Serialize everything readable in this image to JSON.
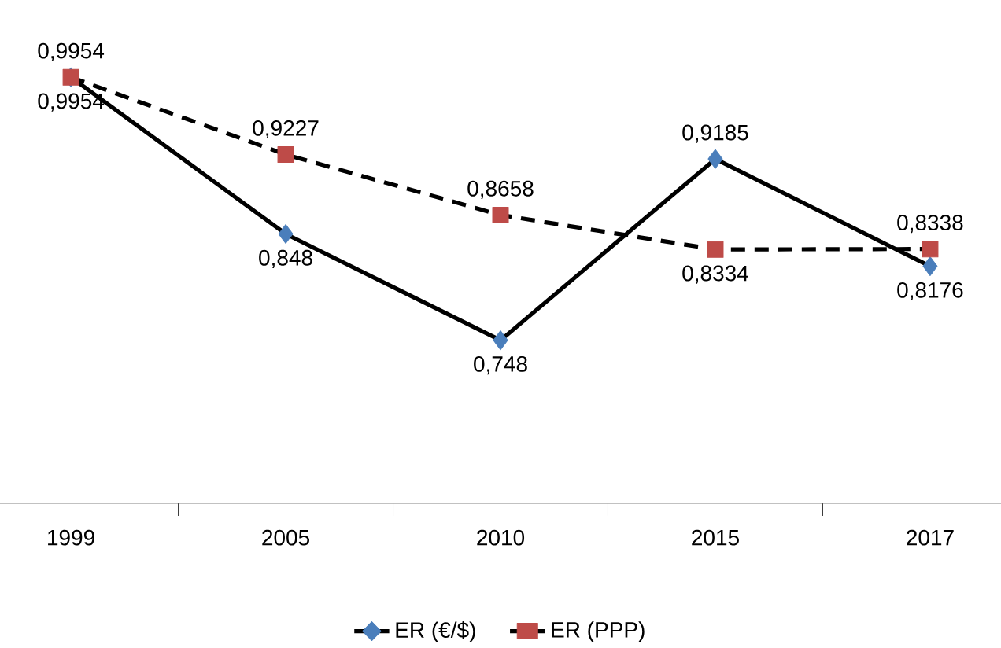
{
  "chart_data": {
    "type": "line",
    "categories": [
      "1999",
      "2005",
      "2010",
      "2015",
      "2017"
    ],
    "series": [
      {
        "name": "ER (€/$)",
        "color": "#4a7ebb",
        "marker": "diamond",
        "line_style": "solid",
        "values": [
          0.9954,
          0.848,
          0.748,
          0.9185,
          0.8176
        ],
        "value_labels": [
          "0,9954",
          "0,848",
          "0,748",
          "0,9185",
          "0,8176"
        ]
      },
      {
        "name": "ER (PPP)",
        "color": "#be4b48",
        "marker": "square",
        "line_style": "dashed",
        "values": [
          0.9954,
          0.9227,
          0.8658,
          0.8334,
          0.8338
        ],
        "value_labels": [
          "0,9954",
          "0,9227",
          "0,8658",
          "0,8334",
          "0,8338"
        ]
      }
    ],
    "legend": "bottom"
  }
}
